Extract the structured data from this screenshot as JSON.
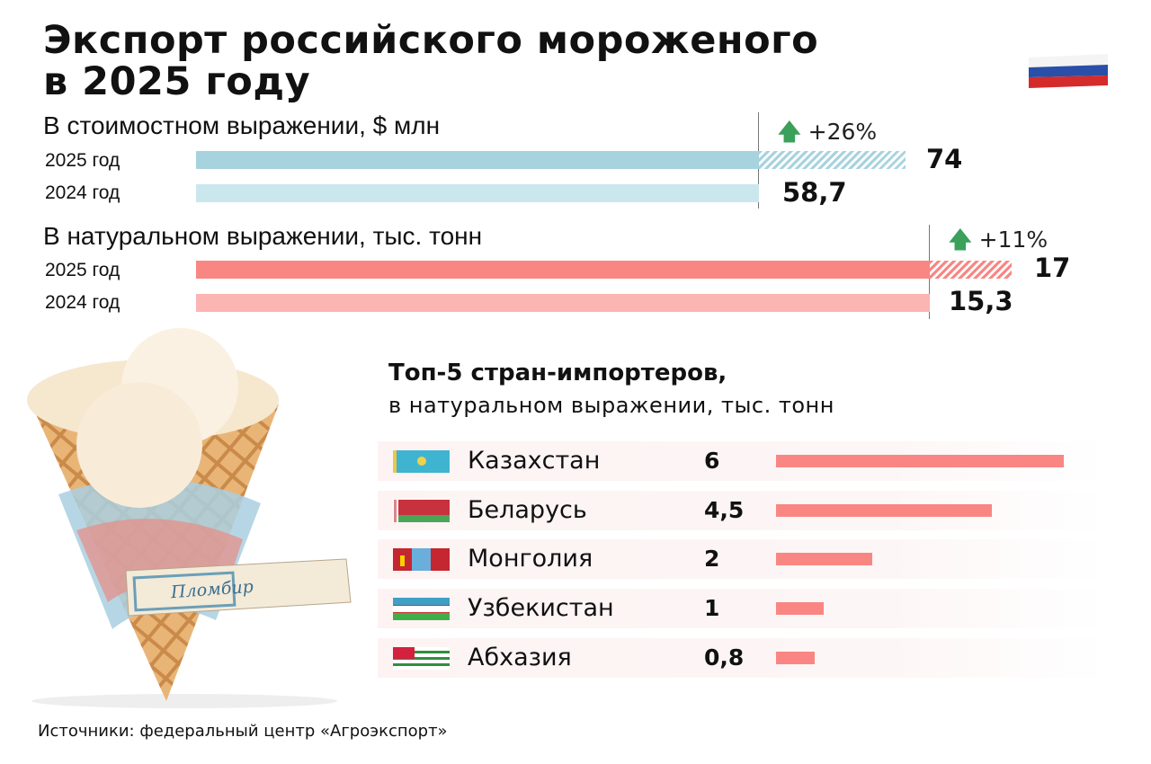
{
  "title_lines": [
    "Экспорт российского мороженого",
    "в 2025 году"
  ],
  "colors": {
    "value_2025": "#a7d3df",
    "value_2024": "#cbe7ee",
    "volume_2025": "#f98683",
    "volume_2024": "#fbb5b3",
    "country_bar": "#f98683",
    "up_arrow": "#3aa05a"
  },
  "chart_data": [
    {
      "type": "bar",
      "orientation": "horizontal",
      "title": "В стоимостном выражении, $ млн",
      "categories": [
        "2025 год",
        "2024 год"
      ],
      "values": [
        74,
        58.7
      ],
      "value_labels": [
        "74",
        "58,7"
      ],
      "change": "+26%"
    },
    {
      "type": "bar",
      "orientation": "horizontal",
      "title": "В натуральном выражении, тыс. тонн",
      "categories": [
        "2025 год",
        "2024 год"
      ],
      "values": [
        17,
        15.3
      ],
      "value_labels": [
        "17",
        "15,3"
      ],
      "change": "+11%"
    },
    {
      "type": "bar",
      "orientation": "horizontal",
      "title": "Топ-5 стран-импортеров,",
      "subtitle": "в натуральном выражении, тыс. тонн",
      "categories": [
        "Казахстан",
        "Беларусь",
        "Монголия",
        "Узбекистан",
        "Абхазия"
      ],
      "values": [
        6,
        4.5,
        2,
        1,
        0.8
      ],
      "value_labels": [
        "6",
        "4,5",
        "2",
        "1",
        "0,8"
      ],
      "flags": [
        "kazakhstan-flag",
        "belarus-flag",
        "mongolia-flag",
        "uzbekistan-flag",
        "abkhazia-flag"
      ]
    }
  ],
  "illustration_label": "Пломбир",
  "source": "Источники: федеральный центр «Агроэкспорт»",
  "icons": {
    "country": "russia-flag",
    "change": "arrow-up-icon"
  }
}
